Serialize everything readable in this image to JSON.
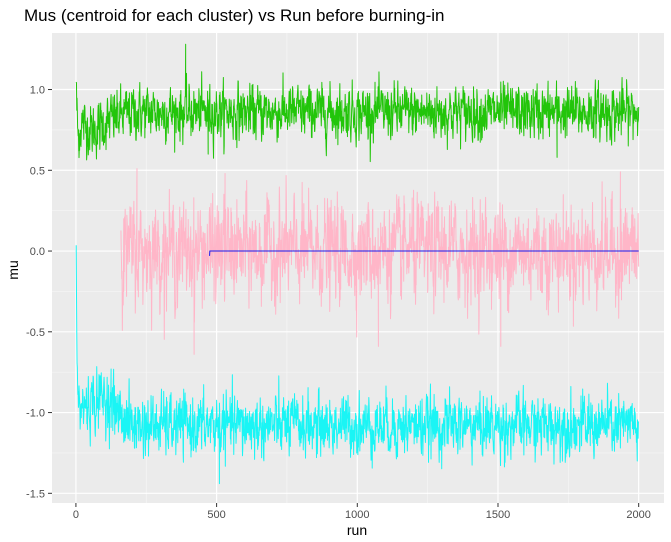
{
  "chart_data": {
    "type": "line",
    "title": "Mus (centroid for each cluster) vs Run before burning-in",
    "xlabel": "run",
    "ylabel": "mu",
    "xlim": [
      -85,
      2090
    ],
    "ylim": [
      -1.56,
      1.35
    ],
    "xticks": [
      0,
      500,
      1000,
      1500,
      2000
    ],
    "xtick_labels": [
      "0",
      "500",
      "1000",
      "1500",
      "2000"
    ],
    "yticks": [
      -1.5,
      -1.0,
      -0.5,
      0.0,
      0.5,
      1.0
    ],
    "ytick_labels": [
      "-1.5",
      "-1.0",
      "-0.5",
      "0.0",
      "0.5",
      "1.0"
    ],
    "grid": true,
    "legend": "none",
    "series": [
      {
        "name": "cluster-green",
        "color": "#22C50A",
        "start": 1,
        "end": 2000,
        "mean": 0.86,
        "noise": 0.08,
        "anchors": [
          [
            1,
            1.07
          ],
          [
            3,
            0.88
          ],
          [
            8,
            0.7
          ],
          [
            20,
            0.79
          ],
          [
            60,
            0.74
          ],
          [
            130,
            0.82
          ],
          [
            200,
            0.86
          ],
          [
            400,
            0.86
          ],
          [
            2000,
            0.86
          ]
        ],
        "highlights": [
          [
            10,
            0.62
          ],
          [
            390,
            1.28
          ],
          [
            470,
            0.6
          ],
          [
            1710,
            0.58
          ]
        ]
      },
      {
        "name": "cluster-pink",
        "color": "#FFB6C8",
        "start": 160,
        "end": 2000,
        "mean": 0.0,
        "noise": 0.15,
        "anchors": [
          [
            160,
            0.0
          ],
          [
            2000,
            0.0
          ]
        ],
        "highlights": [
          [
            170,
            0.2
          ],
          [
            170,
            -0.25
          ],
          [
            217,
            0.51
          ],
          [
            420,
            -0.64
          ],
          [
            530,
            0.48
          ],
          [
            1075,
            -0.59
          ],
          [
            1510,
            -0.59
          ],
          [
            1935,
            0.49
          ]
        ]
      },
      {
        "name": "cluster-blue",
        "color": "#1A1AEE",
        "start": 475,
        "end": 2000,
        "mean": 0.0,
        "noise": 0.0,
        "anchors": [
          [
            475,
            -0.03
          ],
          [
            476,
            0.0
          ],
          [
            2000,
            0.0
          ]
        ],
        "highlights": []
      },
      {
        "name": "cluster-cyan",
        "color": "#1AF5F5",
        "start": 1,
        "end": 2000,
        "mean": -1.08,
        "noise": 0.09,
        "anchors": [
          [
            1,
            0.0
          ],
          [
            3,
            -0.5
          ],
          [
            5,
            -0.78
          ],
          [
            10,
            -0.98
          ],
          [
            100,
            -0.9
          ],
          [
            150,
            -1.0
          ],
          [
            200,
            -1.08
          ],
          [
            2000,
            -1.08
          ]
        ],
        "highlights": [
          [
            125,
            -0.73
          ],
          [
            510,
            -1.44
          ],
          [
            1995,
            -1.3
          ]
        ]
      }
    ]
  }
}
